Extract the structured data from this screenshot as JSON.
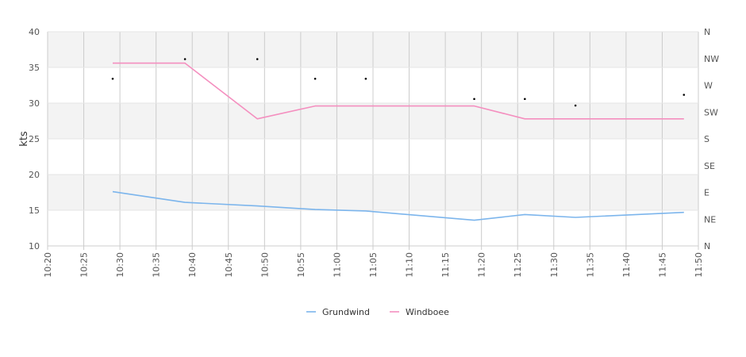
{
  "chart_data": {
    "type": "line",
    "title": "",
    "xlabel": "",
    "ylabel": "kts",
    "ylim": [
      10,
      40
    ],
    "yticks": [
      "10",
      "15",
      "20",
      "25",
      "30",
      "35",
      "40"
    ],
    "xlim": [
      "10:20",
      "11:50"
    ],
    "xticks": [
      "10:20",
      "10:25",
      "10:30",
      "10:35",
      "10:40",
      "10:45",
      "10:50",
      "10:55",
      "11:00",
      "11:05",
      "11:10",
      "11:15",
      "11:20",
      "11:25",
      "11:30",
      "11:35",
      "11:40",
      "11:45",
      "11:50"
    ],
    "y2ticks": [
      "N",
      "NE",
      "E",
      "SE",
      "S",
      "SW",
      "W",
      "NW",
      "N"
    ],
    "grid": true,
    "legend_position": "bottom",
    "colors": {
      "Grundwind": "#7cb5ec",
      "Windboee": "#f48fbf",
      "direction_marker": "#000000",
      "band": "#f3f3f3",
      "gridline": "#cccccc"
    },
    "series": [
      {
        "name": "Grundwind",
        "x": [
          "10:29",
          "10:39",
          "10:49",
          "10:57",
          "11:04",
          "11:19",
          "11:26",
          "11:33",
          "11:48"
        ],
        "values": [
          17.6,
          16.1,
          15.6,
          15.1,
          14.9,
          13.6,
          14.4,
          14.0,
          14.7
        ]
      },
      {
        "name": "Windboee",
        "x": [
          "10:29",
          "10:39",
          "10:49",
          "10:57",
          "11:04",
          "11:19",
          "11:26",
          "11:33",
          "11:48"
        ],
        "values": [
          35.6,
          35.6,
          27.8,
          29.6,
          29.6,
          29.6,
          27.8,
          27.8,
          27.8
        ]
      }
    ],
    "direction_points": {
      "x": [
        "10:29",
        "10:39",
        "10:49",
        "10:57",
        "11:04",
        "11:19",
        "11:26",
        "11:33",
        "11:48"
      ],
      "degrees": [
        281,
        314,
        314,
        281,
        281,
        247,
        247,
        236,
        254
      ]
    }
  }
}
